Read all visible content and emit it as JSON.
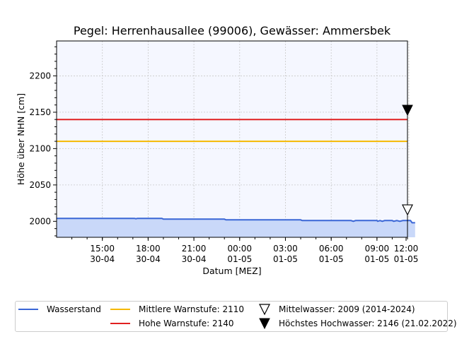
{
  "chart_data": {
    "type": "line",
    "title": "Pegel:  Herrenhausallee (99006), Gewässer:  Ammersbek",
    "xlabel": "Datum [MEZ]",
    "ylabel": "Höhe über NHN [cm]",
    "ylim": [
      1978,
      2248
    ],
    "xlim_hours": [
      0,
      23
    ],
    "x_ticks": [
      {
        "h": 3,
        "time": "15:00",
        "date": "30-04"
      },
      {
        "h": 6,
        "time": "18:00",
        "date": "30-04"
      },
      {
        "h": 9,
        "time": "21:00",
        "date": "30-04"
      },
      {
        "h": 12,
        "time": "00:00",
        "date": "01-05"
      },
      {
        "h": 15,
        "time": "03:00",
        "date": "01-05"
      },
      {
        "h": 18,
        "time": "06:00",
        "date": "01-05"
      },
      {
        "h": 21,
        "time": "09:00",
        "date": "01-05"
      },
      {
        "h": 24,
        "time": "12:00",
        "date": "01-05"
      }
    ],
    "y_ticks": [
      2000,
      2050,
      2100,
      2150,
      2200
    ],
    "grid": true,
    "legend_position": "bottom",
    "series": [
      {
        "name": "Wasserstand",
        "color": "#3a66d6",
        "fill": "#c9d8f9",
        "points": [
          [
            0,
            2004
          ],
          [
            5.1,
            2004
          ],
          [
            5.2,
            2003.5
          ],
          [
            5.3,
            2004
          ],
          [
            6.9,
            2004
          ],
          [
            7.0,
            2003
          ],
          [
            11.0,
            2003
          ],
          [
            11.1,
            2002
          ],
          [
            16.0,
            2002
          ],
          [
            16.1,
            2001
          ],
          [
            19.3,
            2001
          ],
          [
            19.45,
            2000
          ],
          [
            19.6,
            2001
          ],
          [
            21.0,
            2001
          ],
          [
            21.05,
            2000
          ],
          [
            21.2,
            2001
          ],
          [
            21.35,
            2000
          ],
          [
            21.5,
            2001
          ],
          [
            22.0,
            2001
          ],
          [
            22.1,
            2000
          ],
          [
            22.3,
            2001
          ],
          [
            22.5,
            2000
          ],
          [
            22.7,
            2001
          ],
          [
            23.2,
            2001
          ],
          [
            23.3,
            1998
          ],
          [
            23.5,
            1998
          ]
        ]
      },
      {
        "name": "Mittlere Warnstufe: 2110",
        "color": "#f5b800",
        "value": 2110
      },
      {
        "name": "Hohe Warnstufe: 2140",
        "color": "#e02020",
        "value": 2140
      }
    ],
    "markers": [
      {
        "name": "Mittelwasser: 2009 (2014-2024)",
        "value": 2009,
        "style": "open-triangle-down"
      },
      {
        "name": "Höchstes Hochwasser: 2146 (21.02.2022)",
        "value": 2146,
        "style": "filled-triangle-down"
      }
    ]
  }
}
